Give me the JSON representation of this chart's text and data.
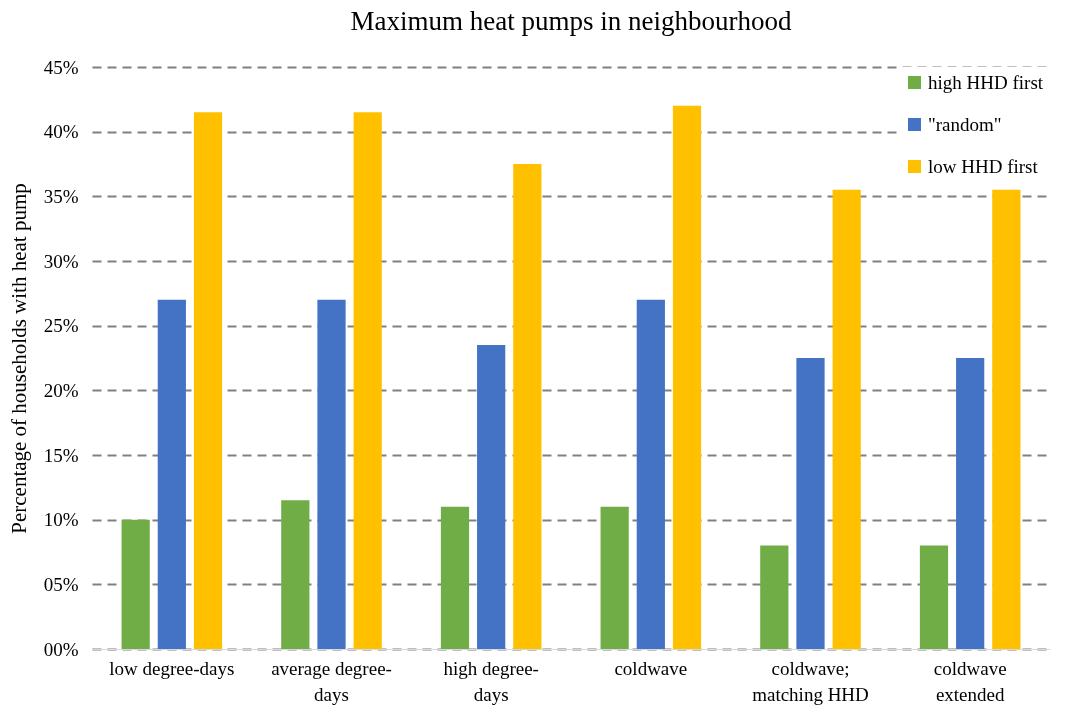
{
  "chart_data": {
    "type": "bar",
    "title": "Maximum heat pumps in neighbourhood",
    "ylabel": "Percentage of households with heat pump",
    "categories": [
      "low degree-days",
      "average degree-days",
      "high degree-days",
      "coldwave",
      "coldwave; matching HHD",
      "coldwave extended"
    ],
    "series": [
      {
        "name": "high HHD first",
        "color": "#70ad47",
        "values": [
          10,
          11.5,
          11,
          11,
          8,
          8
        ]
      },
      {
        "name": "\"random\"",
        "color": "#4472c4",
        "values": [
          27,
          27,
          23.5,
          27,
          22.5,
          22.5
        ]
      },
      {
        "name": "low HHD first",
        "color": "#ffc000",
        "values": [
          41.5,
          41.5,
          37.5,
          42,
          35.5,
          35.5
        ]
      }
    ],
    "ylim": [
      0,
      45
    ],
    "yticks": [
      {
        "value": 0,
        "label": "00%"
      },
      {
        "value": 5,
        "label": "05%"
      },
      {
        "value": 10,
        "label": "10%"
      },
      {
        "value": 15,
        "label": "15%"
      },
      {
        "value": 20,
        "label": "20%"
      },
      {
        "value": 25,
        "label": "25%"
      },
      {
        "value": 30,
        "label": "30%"
      },
      {
        "value": 35,
        "label": "35%"
      },
      {
        "value": 40,
        "label": "40%"
      },
      {
        "value": 45,
        "label": "45%"
      }
    ],
    "grid": "y",
    "legend": "top right"
  }
}
